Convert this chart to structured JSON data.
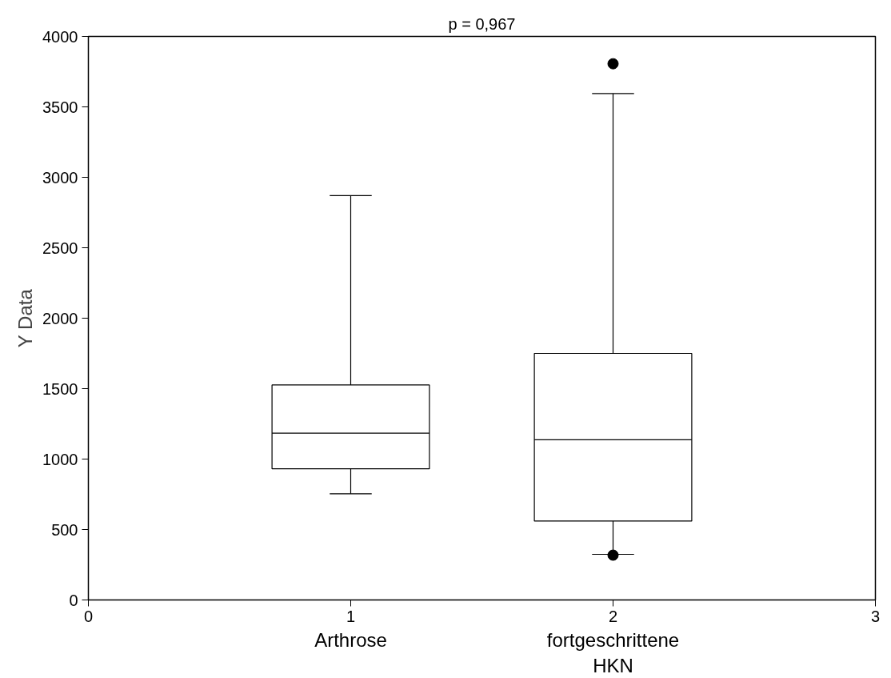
{
  "chart_data": {
    "type": "box",
    "ylabel": "Y Data",
    "categories": [
      "Arthrose",
      "fortgeschrittene\nHKN"
    ],
    "boxes": [
      {
        "low": 754,
        "q1": 931,
        "median": 1184,
        "q3": 1526,
        "high": 2870
      },
      {
        "low": 324,
        "q1": 560,
        "median": 1137,
        "q3": 1750,
        "high": 3594,
        "outliers": [
          318,
          3806
        ]
      }
    ],
    "color": "#000000",
    "x2lim": [
      0,
      3
    ],
    "x2ticks": [
      0,
      1,
      2,
      3
    ],
    "ylim": [
      0,
      4000
    ],
    "yticks": [
      0,
      500,
      1000,
      1500,
      2000,
      2500,
      3000,
      3500,
      4000
    ],
    "grid": false,
    "annotations": [
      "p = 0,967"
    ]
  }
}
